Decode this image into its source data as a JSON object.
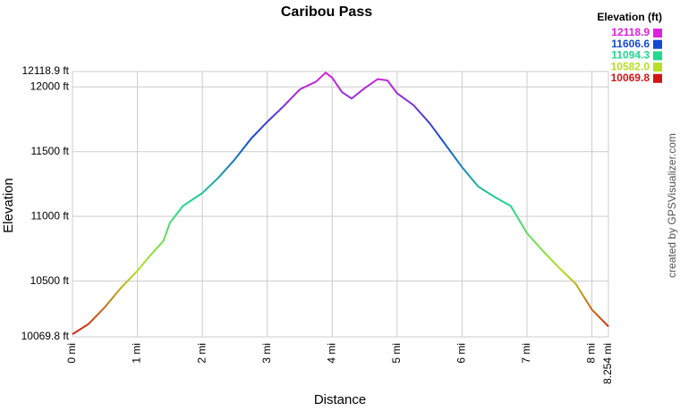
{
  "chart_data": {
    "type": "line",
    "title": "Caribou Pass",
    "x_label": "Distance",
    "y_label": "Elevation",
    "credit": "created by GPSVisualizer.com",
    "x": [
      0,
      0.25,
      0.5,
      0.75,
      1.0,
      1.2,
      1.4,
      1.5,
      1.7,
      2.0,
      2.25,
      2.5,
      2.75,
      3.0,
      3.25,
      3.5,
      3.75,
      3.9,
      4.0,
      4.15,
      4.3,
      4.5,
      4.7,
      4.85,
      5.0,
      5.25,
      5.5,
      5.75,
      6.0,
      6.25,
      6.5,
      6.75,
      7.0,
      7.25,
      7.5,
      7.75,
      8.0,
      8.254
    ],
    "values": [
      10090,
      10170,
      10300,
      10450,
      10580,
      10700,
      10810,
      10950,
      11080,
      11180,
      11300,
      11440,
      11600,
      11730,
      11850,
      11980,
      12040,
      12110,
      12070,
      11960,
      11910,
      11990,
      12060,
      12050,
      11950,
      11860,
      11720,
      11550,
      11380,
      11230,
      11150,
      11080,
      10870,
      10730,
      10600,
      10480,
      10280,
      10150
    ],
    "xlim": [
      0,
      8.254
    ],
    "xticks": [
      {
        "value": 0,
        "label": "0 mi"
      },
      {
        "value": 1,
        "label": "1 mi"
      },
      {
        "value": 2,
        "label": "2 mi"
      },
      {
        "value": 3,
        "label": "3 mi"
      },
      {
        "value": 4,
        "label": "4 mi"
      },
      {
        "value": 5,
        "label": "5 mi"
      },
      {
        "value": 6,
        "label": "6 mi"
      },
      {
        "value": 7,
        "label": "7 mi"
      },
      {
        "value": 8,
        "label": "8 mi"
      },
      {
        "value": 8.254,
        "label": "8.254 mi"
      }
    ],
    "ylim": [
      10069.8,
      12118.9
    ],
    "yticks": [
      {
        "value": 10069.8,
        "label": "10069.8 ft"
      },
      {
        "value": 10500,
        "label": "10500 ft"
      },
      {
        "value": 11000,
        "label": "11000 ft"
      },
      {
        "value": 11500,
        "label": "11500 ft"
      },
      {
        "value": 12000,
        "label": "12000 ft"
      },
      {
        "value": 12118.9,
        "label": "12118.9 ft"
      }
    ],
    "grid": true,
    "legend_title": "Elevation (ft)",
    "color_scale": [
      {
        "value": 12118.9,
        "color": "#e020e0"
      },
      {
        "value": 11606.6,
        "color": "#1448d0"
      },
      {
        "value": 11094.3,
        "color": "#20d890"
      },
      {
        "value": 10582,
        "label": "10582.0",
        "color": "#b4e020"
      },
      {
        "value": 10069.8,
        "color": "#d41414"
      }
    ]
  }
}
